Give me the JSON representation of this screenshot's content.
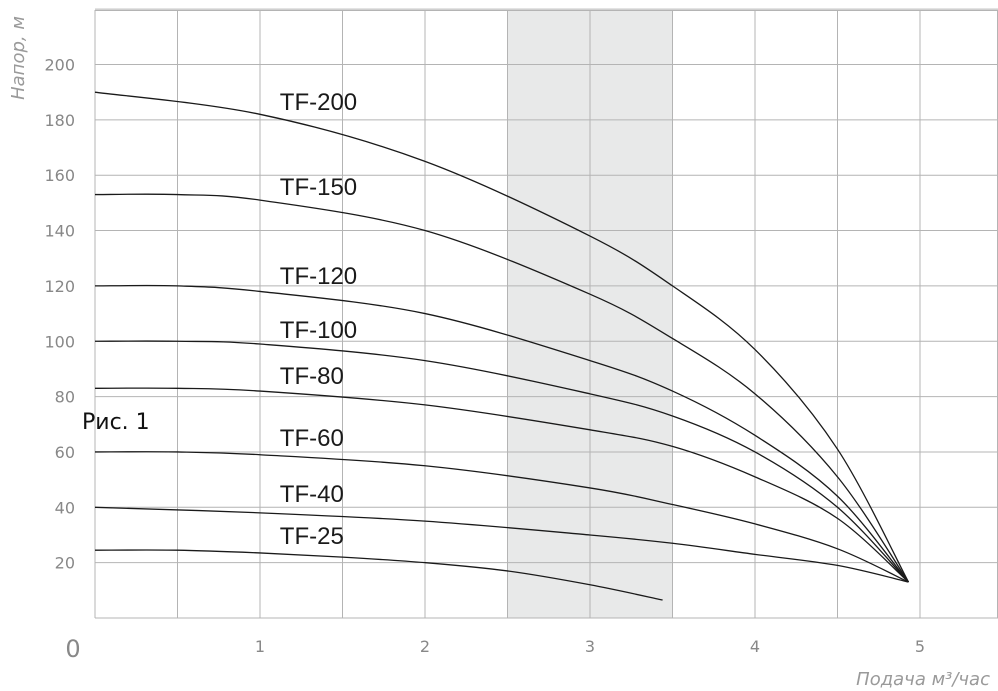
{
  "chart_data": {
    "type": "line",
    "xlabel": "Подача м³/час",
    "ylabel": "Напор, м",
    "origin_label": "0",
    "annotation": "Рис. 1",
    "xlim": [
      0,
      5.5
    ],
    "ylim": [
      0,
      220
    ],
    "x_ticks": [
      "1",
      "2",
      "3",
      "4",
      "5"
    ],
    "y_ticks": [
      "20",
      "40",
      "60",
      "80",
      "100",
      "120",
      "140",
      "160",
      "180",
      "200"
    ],
    "grid": true,
    "highlight_band": {
      "x_from": 2.5,
      "x_to": 3.5
    },
    "colors": {
      "line": "#1a1a1a",
      "grid": "#b4b4b4",
      "band": "#e8e9e9"
    },
    "series": [
      {
        "name": "TF-200",
        "x": [
          0,
          1,
          2,
          3,
          3.5,
          4,
          4.5,
          4.93
        ],
        "y": [
          190,
          182,
          165,
          138,
          120,
          97,
          61,
          13
        ]
      },
      {
        "name": "TF-150",
        "x": [
          0,
          0.5,
          1,
          2,
          3,
          3.5,
          4,
          4.5,
          4.93
        ],
        "y": [
          153,
          153,
          151,
          140,
          117,
          101,
          81,
          51,
          13
        ]
      },
      {
        "name": "TF-120",
        "x": [
          0,
          0.5,
          1,
          2,
          3,
          3.5,
          4,
          4.5,
          4.93
        ],
        "y": [
          120,
          120,
          118,
          110,
          93,
          82,
          66,
          44,
          13
        ]
      },
      {
        "name": "TF-100",
        "x": [
          0,
          0.5,
          1,
          2,
          3,
          3.5,
          4,
          4.5,
          4.93
        ],
        "y": [
          100,
          100,
          99,
          93,
          81,
          73,
          60,
          40,
          13
        ]
      },
      {
        "name": "TF-80",
        "x": [
          0,
          0.5,
          1,
          2,
          3,
          3.5,
          4,
          4.5,
          4.93
        ],
        "y": [
          83,
          83,
          82,
          77,
          68,
          62,
          51,
          36,
          13
        ]
      },
      {
        "name": "TF-60",
        "x": [
          0,
          0.5,
          1,
          2,
          3,
          3.5,
          4,
          4.5,
          4.93
        ],
        "y": [
          60,
          60,
          59,
          55,
          47,
          41,
          34,
          25,
          13
        ]
      },
      {
        "name": "TF-40",
        "x": [
          0,
          1,
          2,
          3,
          3.5,
          4,
          4.5,
          4.93
        ],
        "y": [
          40,
          38,
          35,
          30,
          27,
          23,
          19,
          13
        ]
      },
      {
        "name": "TF-25",
        "x": [
          0,
          0.5,
          1,
          1.5,
          2,
          2.5,
          3,
          3.44
        ],
        "y": [
          24.5,
          24.5,
          23.5,
          22,
          20,
          17,
          12,
          6.5
        ]
      }
    ]
  }
}
